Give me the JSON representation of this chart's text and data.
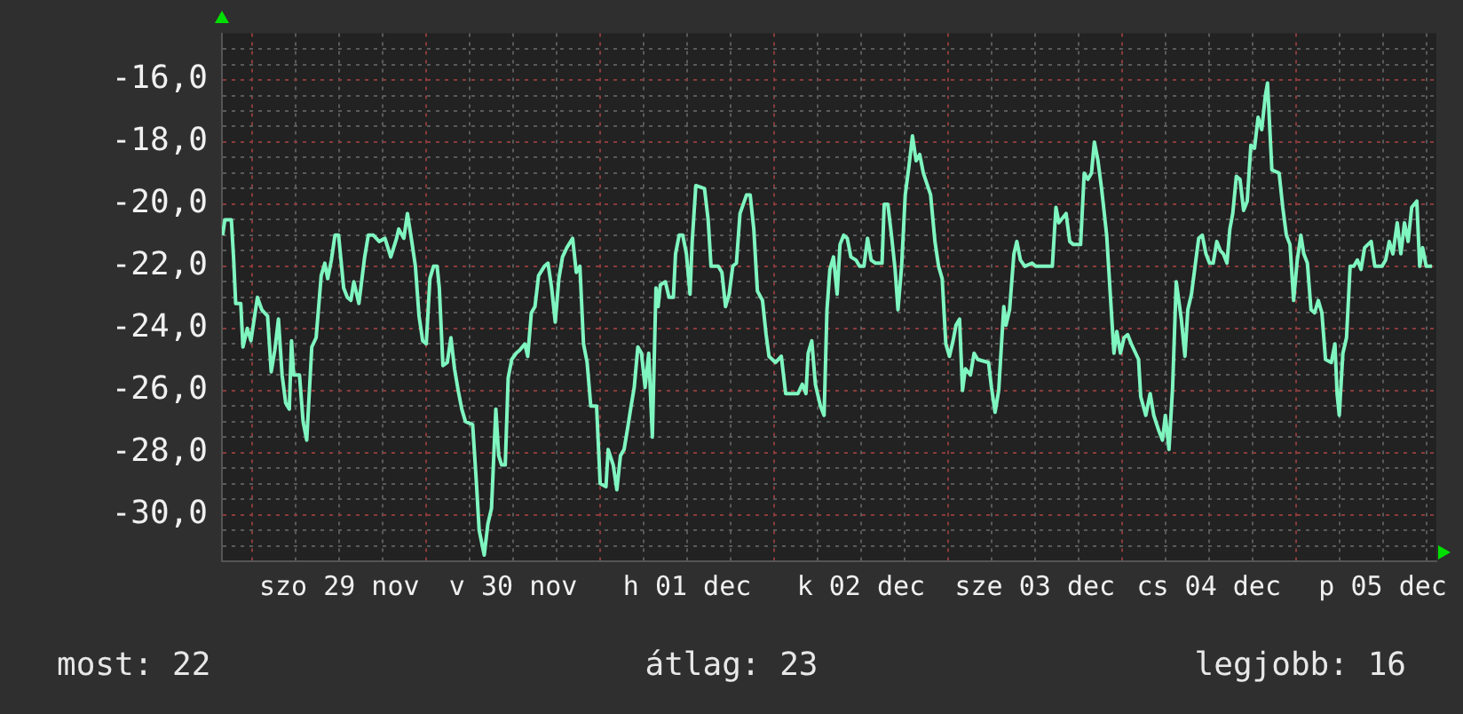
{
  "chart_data": {
    "type": "line",
    "grid": true,
    "legend": false,
    "marker": "none",
    "line_style": "solid",
    "annotations": [
      "most: 22",
      "átlag: 23",
      "legjobb: 16"
    ],
    "xlim": [
      "--11-28T19:48",
      "--12-05T19:24"
    ],
    "xticks": [
      {
        "value": "--11-29T00:00",
        "label": null
      },
      {
        "value": "--11-29T06:00",
        "label": null
      },
      {
        "value": "--11-29T12:00",
        "label": "szo 29 nov"
      },
      {
        "value": "--11-29T18:00",
        "label": null
      },
      {
        "value": "--11-30T00:00",
        "label": null
      },
      {
        "value": "--11-30T06:00",
        "label": null
      },
      {
        "value": "--11-30T12:00",
        "label": "v 30 nov"
      },
      {
        "value": "--11-30T18:00",
        "label": null
      },
      {
        "value": "--12-01T00:00",
        "label": null
      },
      {
        "value": "--12-01T06:00",
        "label": null
      },
      {
        "value": "--12-01T12:00",
        "label": "h 01 dec"
      },
      {
        "value": "--12-01T18:00",
        "label": null
      },
      {
        "value": "--12-02T00:00",
        "label": null
      },
      {
        "value": "--12-02T06:00",
        "label": null
      },
      {
        "value": "--12-02T12:00",
        "label": "k 02 dec"
      },
      {
        "value": "--12-02T18:00",
        "label": null
      },
      {
        "value": "--12-03T00:00",
        "label": null
      },
      {
        "value": "--12-03T06:00",
        "label": null
      },
      {
        "value": "--12-03T12:00",
        "label": "sze 03 dec"
      },
      {
        "value": "--12-03T18:00",
        "label": null
      },
      {
        "value": "--12-04T00:00",
        "label": null
      },
      {
        "value": "--12-04T06:00",
        "label": null
      },
      {
        "value": "--12-04T12:00",
        "label": "cs 04 dec"
      },
      {
        "value": "--12-04T18:00",
        "label": null
      },
      {
        "value": "--12-05T00:00",
        "label": null
      },
      {
        "value": "--12-05T06:00",
        "label": null
      },
      {
        "value": "--12-05T12:00",
        "label": "p 05 dec"
      },
      {
        "value": "--12-05T18:00",
        "label": null
      }
    ],
    "ylim": [
      -31.5,
      -14.5
    ],
    "yticks": [
      {
        "value": -31,
        "label": null
      },
      {
        "value": -30.5,
        "label": null
      },
      {
        "value": -30,
        "label": "-30,0"
      },
      {
        "value": -29.5,
        "label": null
      },
      {
        "value": -29,
        "label": null
      },
      {
        "value": -28.5,
        "label": null
      },
      {
        "value": -28,
        "label": "-28,0"
      },
      {
        "value": -27.5,
        "label": null
      },
      {
        "value": -27,
        "label": null
      },
      {
        "value": -26.5,
        "label": null
      },
      {
        "value": -26,
        "label": "-26,0"
      },
      {
        "value": -25.5,
        "label": null
      },
      {
        "value": -25,
        "label": null
      },
      {
        "value": -24.5,
        "label": null
      },
      {
        "value": -24,
        "label": "-24,0"
      },
      {
        "value": -23.5,
        "label": null
      },
      {
        "value": -23,
        "label": null
      },
      {
        "value": -22.5,
        "label": null
      },
      {
        "value": -22,
        "label": "-22,0"
      },
      {
        "value": -21.5,
        "label": null
      },
      {
        "value": -21,
        "label": null
      },
      {
        "value": -20.5,
        "label": null
      },
      {
        "value": -20,
        "label": "-20,0"
      },
      {
        "value": -19.5,
        "label": null
      },
      {
        "value": -19,
        "label": null
      },
      {
        "value": -18.5,
        "label": null
      },
      {
        "value": -18,
        "label": "-18,0"
      },
      {
        "value": -17.5,
        "label": null
      },
      {
        "value": -17,
        "label": null
      },
      {
        "value": -16.5,
        "label": null
      },
      {
        "value": -16,
        "label": "-16,0"
      },
      {
        "value": -15.5,
        "label": null
      },
      {
        "value": -15,
        "label": null
      }
    ],
    "series": [
      {
        "color": "#7ff5c0",
        "x": [
          "--11-28T19:54",
          "--11-28T20:12",
          "--11-28T21:06",
          "--11-28T21:24",
          "--11-28T21:42",
          "--11-28T22:24",
          "--11-28T22:42",
          "--11-28T23:18",
          "--11-28T23:48",
          "--11-29T00:42",
          "--11-29T01:18",
          "--11-29T02:06",
          "--11-29T02:36",
          "--11-29T03:06",
          "--11-29T03:36",
          "--11-29T04:06",
          "--11-29T04:36",
          "--11-29T05:06",
          "--11-29T05:24",
          "--11-29T05:42",
          "--11-29T06:30",
          "--11-29T07:00",
          "--11-29T07:30",
          "--11-29T08:12",
          "--11-29T08:48",
          "--11-29T09:30",
          "--11-29T10:00",
          "--11-29T10:24",
          "--11-29T10:54",
          "--11-29T11:24",
          "--11-29T11:54",
          "--11-29T12:36",
          "--11-29T13:06",
          "--11-29T13:36",
          "--11-29T14:00",
          "--11-29T14:42",
          "--11-29T15:30",
          "--11-29T16:00",
          "--11-29T16:42",
          "--11-29T17:30",
          "--11-29T18:18",
          "--11-29T19:06",
          "--11-29T19:54",
          "--11-29T20:12",
          "--11-29T20:54",
          "--11-29T21:24",
          "--11-29T22:00",
          "--11-29T22:30",
          "--11-29T23:00",
          "--11-29T23:30",
          "--11-30T00:00",
          "--11-30T00:30",
          "--11-30T01:00",
          "--11-30T01:30",
          "--11-30T01:48",
          "--11-30T02:18",
          "--11-30T02:54",
          "--11-30T03:24",
          "--11-30T03:54",
          "--11-30T04:24",
          "--11-30T04:54",
          "--11-30T05:24",
          "--11-30T06:24",
          "--11-30T06:54",
          "--11-30T07:18",
          "--11-30T08:00",
          "--11-30T08:30",
          "--11-30T09:00",
          "--11-30T09:36",
          "--11-30T10:00",
          "--11-30T10:24",
          "--11-30T10:54",
          "--11-30T11:18",
          "--11-30T11:48",
          "--11-30T12:24",
          "--11-30T12:54",
          "--11-30T13:36",
          "--11-30T14:00",
          "--11-30T14:30",
          "--11-30T15:00",
          "--11-30T15:30",
          "--11-30T16:18",
          "--11-30T16:48",
          "--11-30T17:18",
          "--11-30T17:48",
          "--11-30T18:18",
          "--11-30T18:48",
          "--11-30T19:24",
          "--11-30T20:12",
          "--11-30T20:42",
          "--11-30T21:12",
          "--11-30T21:42",
          "--11-30T22:12",
          "--11-30T22:42",
          "--11-30T23:30",
          "--12-01T00:00",
          "--12-01T00:48",
          "--12-01T01:06",
          "--12-01T01:48",
          "--12-01T02:18",
          "--12-01T02:48",
          "--12-01T03:18",
          "--12-01T03:48",
          "--12-01T04:12",
          "--12-01T04:42",
          "--12-01T05:12",
          "--12-01T05:42",
          "--12-01T06:12",
          "--12-01T06:42",
          "--12-01T07:12",
          "--12-01T07:42",
          "--12-01T08:00",
          "--12-01T08:18",
          "--12-01T09:00",
          "--12-01T09:30",
          "--12-01T10:06",
          "--12-01T10:24",
          "--12-01T10:54",
          "--12-01T11:24",
          "--12-01T11:54",
          "--12-01T12:24",
          "--12-01T12:42",
          "--12-01T13:12",
          "--12-01T14:24",
          "--12-01T14:54",
          "--12-01T15:18",
          "--12-01T16:18",
          "--12-01T16:48",
          "--12-01T17:18",
          "--12-01T17:48",
          "--12-01T18:18",
          "--12-01T18:48",
          "--12-01T19:18",
          "--12-01T20:12",
          "--12-01T20:42",
          "--12-01T21:12",
          "--12-01T21:42",
          "--12-01T22:24",
          "--12-01T22:54",
          "--12-01T23:18",
          "--12-02T00:12",
          "--12-02T01:00",
          "--12-02T01:36",
          "--12-02T02:36",
          "--12-02T03:18",
          "--12-02T03:54",
          "--12-02T04:24",
          "--12-02T04:42",
          "--12-02T05:12",
          "--12-02T05:42",
          "--12-02T06:24",
          "--12-02T06:54",
          "--12-02T07:18",
          "--12-02T07:42",
          "--12-02T08:12",
          "--12-02T08:42",
          "--12-02T09:06",
          "--12-02T09:36",
          "--12-02T10:06",
          "--12-02T10:36",
          "--12-02T11:18",
          "--12-02T11:48",
          "--12-02T12:24",
          "--12-02T12:54",
          "--12-02T13:24",
          "--12-02T14:00",
          "--12-02T14:54",
          "--12-02T15:12",
          "--12-02T15:42",
          "--12-02T16:12",
          "--12-02T16:42",
          "--12-02T17:06",
          "--12-02T17:36",
          "--12-02T18:06",
          "--12-02T18:36",
          "--12-02T19:06",
          "--12-02T19:36",
          "--12-02T20:06",
          "--12-02T20:36",
          "--12-02T21:36",
          "--12-02T22:12",
          "--12-02T22:42",
          "--12-02T23:12",
          "--12-02T23:42",
          "--12-03T00:12",
          "--12-03T00:42",
          "--12-03T01:06",
          "--12-03T01:36",
          "--12-03T02:00",
          "--12-03T02:24",
          "--12-03T03:06",
          "--12-03T03:36",
          "--12-03T04:06",
          "--12-03T05:36",
          "--12-03T06:00",
          "--12-03T06:30",
          "--12-03T07:00",
          "--12-03T07:42",
          "--12-03T08:00",
          "--12-03T08:30",
          "--12-03T09:06",
          "--12-03T09:30",
          "--12-03T10:00",
          "--12-03T10:36",
          "--12-03T11:36",
          "--12-03T12:06",
          "--12-03T14:24",
          "--12-03T14:54",
          "--12-03T15:18",
          "--12-03T16:18",
          "--12-03T16:48",
          "--12-03T17:18",
          "--12-03T18:18",
          "--12-03T18:48",
          "--12-03T19:18",
          "--12-03T19:48",
          "--12-03T20:12",
          "--12-03T20:42",
          "--12-03T21:12",
          "--12-03T21:54",
          "--12-03T22:24",
          "--12-03T22:54",
          "--12-03T23:18",
          "--12-03T23:48",
          "--12-04T00:18",
          "--12-04T00:48",
          "--12-04T01:18",
          "--12-04T02:18",
          "--12-04T02:36",
          "--12-04T03:18",
          "--12-04T03:54",
          "--12-04T04:24",
          "--12-04T05:06",
          "--12-04T05:36",
          "--12-04T06:00",
          "--12-04T06:30",
          "--12-04T07:00",
          "--12-04T07:30",
          "--12-04T08:12",
          "--12-04T08:42",
          "--12-04T09:06",
          "--12-04T09:36",
          "--12-04T10:06",
          "--12-04T10:36",
          "--12-04T11:06",
          "--12-04T11:36",
          "--12-04T12:06",
          "--12-04T12:36",
          "--12-04T13:06",
          "--12-04T13:36",
          "--12-04T14:00",
          "--12-04T14:30",
          "--12-04T14:54",
          "--12-04T15:18",
          "--12-04T15:48",
          "--12-04T16:18",
          "--12-04T16:48",
          "--12-04T17:18",
          "--12-04T17:48",
          "--12-04T18:18",
          "--12-04T18:48",
          "--12-04T19:18",
          "--12-04T19:48",
          "--12-04T20:06",
          "--12-04T20:24",
          "--12-04T20:42",
          "--12-04T21:42",
          "--12-04T22:12",
          "--12-04T22:42",
          "--12-04T23:12",
          "--12-04T23:42",
          "--12-05T00:12",
          "--12-05T00:42",
          "--12-05T01:06",
          "--12-05T01:36",
          "--12-05T02:06",
          "--12-05T02:36",
          "--12-05T03:06",
          "--12-05T03:36",
          "--12-05T04:06",
          "--12-05T04:54",
          "--12-05T05:24",
          "--12-05T05:42",
          "--12-05T06:00",
          "--12-05T06:30",
          "--12-05T07:00",
          "--12-05T07:30",
          "--12-05T08:00",
          "--12-05T08:30",
          "--12-05T09:00",
          "--12-05T09:30",
          "--12-05T10:24",
          "--12-05T10:54",
          "--12-05T11:54",
          "--12-05T12:24",
          "--12-05T12:54",
          "--12-05T13:24",
          "--12-05T14:00",
          "--12-05T14:30",
          "--12-05T15:00",
          "--12-05T15:30",
          "--12-05T16:00",
          "--12-05T16:42",
          "--12-05T17:06",
          "--12-05T17:30",
          "--12-05T18:00",
          "--12-05T18:48"
        ],
        "values": [
          -21.0,
          -20.5,
          -20.5,
          -21.7,
          -23.2,
          -23.2,
          -24.6,
          -24.0,
          -24.4,
          -23.0,
          -23.4,
          -23.6,
          -25.4,
          -24.7,
          -23.7,
          -25.5,
          -26.4,
          -26.6,
          -24.4,
          -25.5,
          -25.5,
          -27.0,
          -27.6,
          -24.6,
          -24.3,
          -22.3,
          -21.9,
          -22.4,
          -21.8,
          -21.0,
          -21.0,
          -22.7,
          -23.0,
          -23.1,
          -22.5,
          -23.2,
          -21.7,
          -21.0,
          -21.0,
          -21.2,
          -21.1,
          -21.7,
          -21.1,
          -20.8,
          -21.1,
          -20.3,
          -21.2,
          -22.0,
          -23.6,
          -24.4,
          -24.5,
          -22.4,
          -22.0,
          -22.0,
          -22.7,
          -25.2,
          -25.1,
          -24.3,
          -25.3,
          -26.0,
          -26.6,
          -27.0,
          -27.1,
          -28.9,
          -30.5,
          -31.3,
          -30.3,
          -29.8,
          -26.6,
          -28.1,
          -28.4,
          -28.4,
          -25.6,
          -25.0,
          -24.8,
          -24.7,
          -24.5,
          -24.9,
          -23.5,
          -23.3,
          -22.3,
          -22.0,
          -21.9,
          -22.7,
          -23.8,
          -22.4,
          -21.7,
          -21.4,
          -21.1,
          -22.2,
          -22.0,
          -24.5,
          -25.1,
          -26.5,
          -26.5,
          -29.0,
          -29.1,
          -27.9,
          -28.4,
          -29.2,
          -28.1,
          -27.9,
          -27.2,
          -26.6,
          -25.9,
          -24.6,
          -24.8,
          -25.9,
          -24.8,
          -27.5,
          -22.7,
          -23.3,
          -22.6,
          -22.5,
          -23.0,
          -23.0,
          -21.6,
          -21.0,
          -21.0,
          -21.6,
          -22.9,
          -21.2,
          -19.4,
          -19.5,
          -20.5,
          -22.0,
          -22.0,
          -22.2,
          -23.3,
          -22.9,
          -22.0,
          -21.9,
          -20.3,
          -19.7,
          -19.7,
          -20.8,
          -22.8,
          -23.1,
          -24.2,
          -24.9,
          -25.1,
          -24.9,
          -26.1,
          -26.1,
          -26.1,
          -25.8,
          -26.1,
          -24.8,
          -24.4,
          -25.8,
          -26.5,
          -26.8,
          -23.4,
          -22.1,
          -21.7,
          -22.9,
          -21.3,
          -21.0,
          -21.1,
          -21.7,
          -21.8,
          -22.0,
          -22.0,
          -21.1,
          -21.8,
          -21.9,
          -21.9,
          -20.0,
          -20.0,
          -21.0,
          -22.1,
          -23.4,
          -22.0,
          -19.7,
          -18.8,
          -17.8,
          -18.6,
          -18.4,
          -19.0,
          -19.7,
          -21.2,
          -22.0,
          -22.4,
          -24.5,
          -24.9,
          -24.4,
          -23.9,
          -23.7,
          -26.0,
          -25.3,
          -25.5,
          -24.8,
          -25.0,
          -25.1,
          -25.9,
          -26.7,
          -26.0,
          -23.3,
          -23.9,
          -23.4,
          -21.6,
          -21.2,
          -21.8,
          -22.0,
          -21.9,
          -22.0,
          -22.0,
          -20.1,
          -20.6,
          -20.3,
          -21.2,
          -21.3,
          -21.3,
          -19.0,
          -19.2,
          -19.0,
          -18.0,
          -18.6,
          -19.5,
          -21.0,
          -22.9,
          -24.8,
          -24.1,
          -24.8,
          -24.3,
          -24.2,
          -24.5,
          -25.0,
          -26.2,
          -26.8,
          -26.1,
          -26.8,
          -27.3,
          -27.6,
          -26.8,
          -27.9,
          -25.9,
          -22.5,
          -23.7,
          -24.9,
          -23.4,
          -22.9,
          -22.0,
          -21.1,
          -21.0,
          -21.6,
          -21.9,
          -21.9,
          -21.2,
          -21.5,
          -21.6,
          -21.9,
          -20.8,
          -20.3,
          -19.1,
          -19.2,
          -20.2,
          -19.9,
          -18.1,
          -18.2,
          -17.2,
          -17.6,
          -16.5,
          -16.1,
          -17.5,
          -18.9,
          -19.0,
          -20.1,
          -21.0,
          -21.3,
          -23.1,
          -21.8,
          -21.0,
          -21.6,
          -21.9,
          -23.4,
          -23.5,
          -23.1,
          -23.5,
          -25.0,
          -25.1,
          -24.5,
          -26.1,
          -26.8,
          -24.8,
          -24.3,
          -22.0,
          -22.0,
          -21.8,
          -22.1,
          -21.4,
          -21.2,
          -22.0,
          -22.0,
          -21.8,
          -21.2,
          -21.6,
          -20.6,
          -21.6,
          -20.6,
          -21.2,
          -20.1,
          -19.9,
          -22.0,
          -21.4,
          -22.0,
          -22.0
        ]
      }
    ]
  }
}
